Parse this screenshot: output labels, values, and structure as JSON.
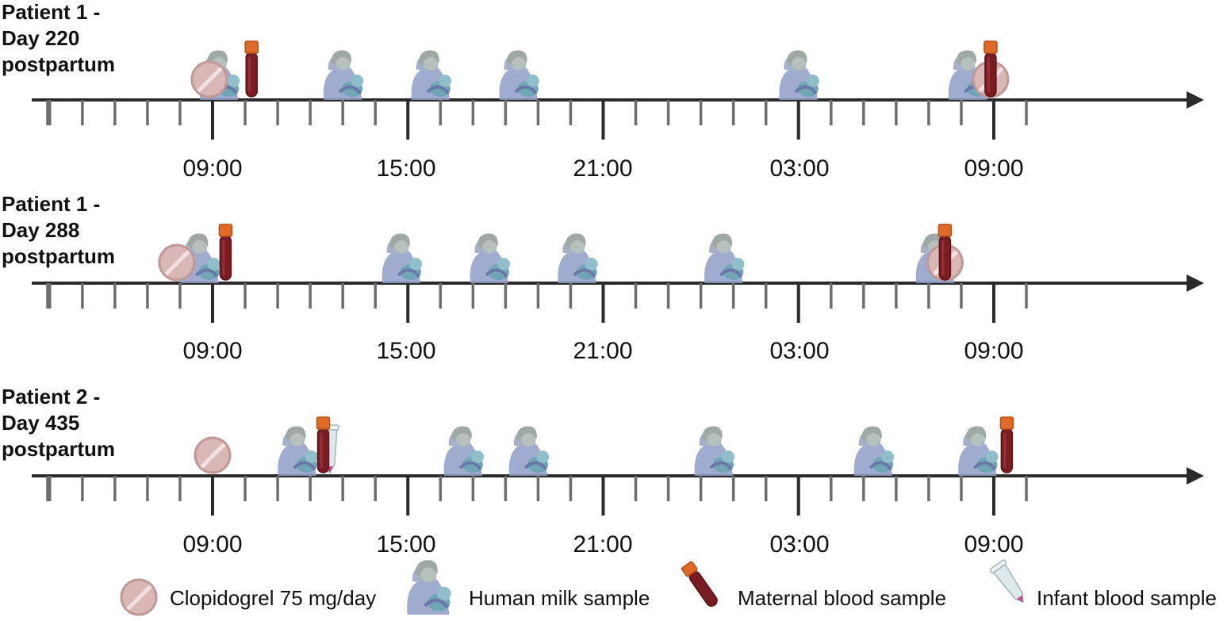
{
  "timelines": [
    {
      "title_lines": [
        "Patient 1 -",
        "Day 220",
        "postpartum"
      ],
      "tick_labels": [
        "09:00",
        "15:00",
        "21:00",
        "03:00",
        "09:00"
      ],
      "events": [
        {
          "type": "clopidogrel",
          "hour": 8.9
        },
        {
          "type": "milk",
          "hour": 9.2
        },
        {
          "type": "maternal_blood",
          "hour": 10.2
        },
        {
          "type": "milk",
          "hour": 13.0
        },
        {
          "type": "milk",
          "hour": 15.7
        },
        {
          "type": "milk",
          "hour": 18.4
        },
        {
          "type": "milk",
          "hour": 27.0
        },
        {
          "type": "milk",
          "hour": 32.2
        },
        {
          "type": "clopidogrel",
          "hour": 32.9
        },
        {
          "type": "maternal_blood",
          "hour": 32.9
        }
      ]
    },
    {
      "title_lines": [
        "Patient 1 -",
        "Day 288",
        "postpartum"
      ],
      "tick_labels": [
        "09:00",
        "15:00",
        "21:00",
        "03:00",
        "09:00"
      ],
      "events": [
        {
          "type": "clopidogrel",
          "hour": 7.9
        },
        {
          "type": "milk",
          "hour": 8.6
        },
        {
          "type": "maternal_blood",
          "hour": 9.4
        },
        {
          "type": "milk",
          "hour": 14.8
        },
        {
          "type": "milk",
          "hour": 17.5
        },
        {
          "type": "milk",
          "hour": 20.2
        },
        {
          "type": "milk",
          "hour": 24.7
        },
        {
          "type": "milk",
          "hour": 31.2
        },
        {
          "type": "clopidogrel",
          "hour": 31.5
        },
        {
          "type": "maternal_blood",
          "hour": 31.5
        }
      ]
    },
    {
      "title_lines": [
        "Patient 2 -",
        "Day 435",
        "postpartum"
      ],
      "tick_labels": [
        "09:00",
        "15:00",
        "21:00",
        "03:00",
        "09:00"
      ],
      "events": [
        {
          "type": "clopidogrel",
          "hour": 9.0
        },
        {
          "type": "milk",
          "hour": 11.6
        },
        {
          "type": "maternal_blood",
          "hour": 12.4
        },
        {
          "type": "infant_blood",
          "hour": 12.6
        },
        {
          "type": "milk",
          "hour": 16.7
        },
        {
          "type": "milk",
          "hour": 18.7
        },
        {
          "type": "milk",
          "hour": 24.4
        },
        {
          "type": "milk",
          "hour": 29.3
        },
        {
          "type": "milk",
          "hour": 32.5
        },
        {
          "type": "maternal_blood",
          "hour": 33.4
        }
      ]
    }
  ],
  "legend": [
    {
      "type": "clopidogrel",
      "label": "Clopidogrel 75 mg/day"
    },
    {
      "type": "milk",
      "label": "Human milk sample"
    },
    {
      "type": "maternal_blood",
      "label": "Maternal blood sample"
    },
    {
      "type": "infant_blood",
      "label": "Infant blood sample"
    }
  ],
  "colors": {
    "axis": "#2b2b2b",
    "minor_tick": "#6d6d6d",
    "pill_fill": "#d9b7b6",
    "pill_stroke": "#c09896",
    "blood": "#7a1d22",
    "cap": "#e06a25",
    "mother": "#8f9ec7",
    "mother_head": "#b6c1be",
    "baby": "#6fa5b5",
    "infant_tube": "#dde8ea"
  }
}
